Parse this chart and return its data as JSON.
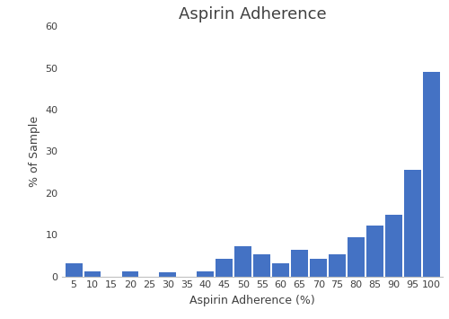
{
  "title": "Aspirin Adherence",
  "xlabel": "Aspirin Adherence (%)",
  "ylabel": "% of Sample",
  "bar_color": "#4472C4",
  "categories": [
    5,
    10,
    15,
    20,
    25,
    30,
    35,
    40,
    45,
    50,
    55,
    60,
    65,
    70,
    75,
    80,
    85,
    90,
    95,
    100
  ],
  "values": [
    3.2,
    1.1,
    0.0,
    1.1,
    0.0,
    1.0,
    0.0,
    1.1,
    4.3,
    7.3,
    5.3,
    3.2,
    6.3,
    4.2,
    5.3,
    9.4,
    12.1,
    14.7,
    25.5,
    49.0
  ],
  "ylim": [
    0,
    60
  ],
  "yticks": [
    0,
    10,
    20,
    30,
    40,
    50,
    60
  ],
  "bar_width": 4.5,
  "title_fontsize": 13,
  "label_fontsize": 9,
  "tick_fontsize": 8,
  "xlim": [
    2,
    103
  ],
  "background_color": "#ffffff",
  "spine_color": "#c0c0c0",
  "text_color": "#404040"
}
